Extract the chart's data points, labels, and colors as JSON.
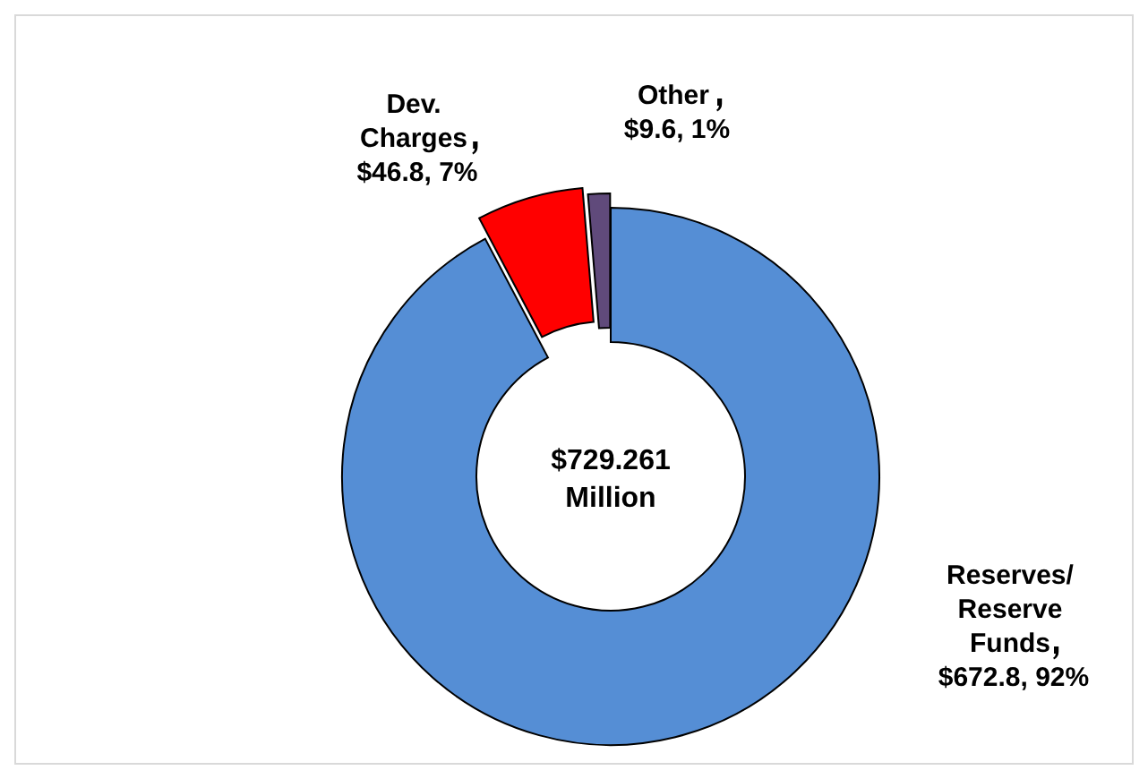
{
  "chart_data": {
    "type": "donut",
    "categories": [
      "Reserves/ Reserve Funds",
      "Dev. Charges",
      "Other"
    ],
    "values": [
      672.8,
      46.8,
      9.6
    ],
    "colors": [
      "#558ed5",
      "#ff0000",
      "#604a7b"
    ],
    "value_labels": [
      "$672.8, 92%",
      "$46.8, 7%",
      "$9.6, 1%"
    ],
    "annotations": [
      "$729.261 Million"
    ],
    "legend": false
  }
}
